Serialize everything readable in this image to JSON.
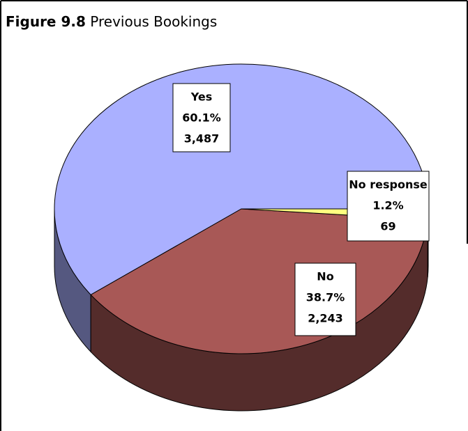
{
  "chart_data": {
    "type": "pie",
    "figure_number": "Figure 9.8",
    "title": "Previous Bookings",
    "categories": [
      "Yes",
      "No",
      "No response"
    ],
    "values": [
      60.1,
      38.7,
      1.2
    ],
    "value_labels": [
      "60.1%",
      "38.7%",
      "1.2%"
    ],
    "counts": [
      3487,
      2243,
      69
    ],
    "count_labels": [
      "3,487",
      "2,243",
      "69"
    ],
    "colors": [
      "#aab0ff",
      "#a85856",
      "#ffff80"
    ]
  }
}
